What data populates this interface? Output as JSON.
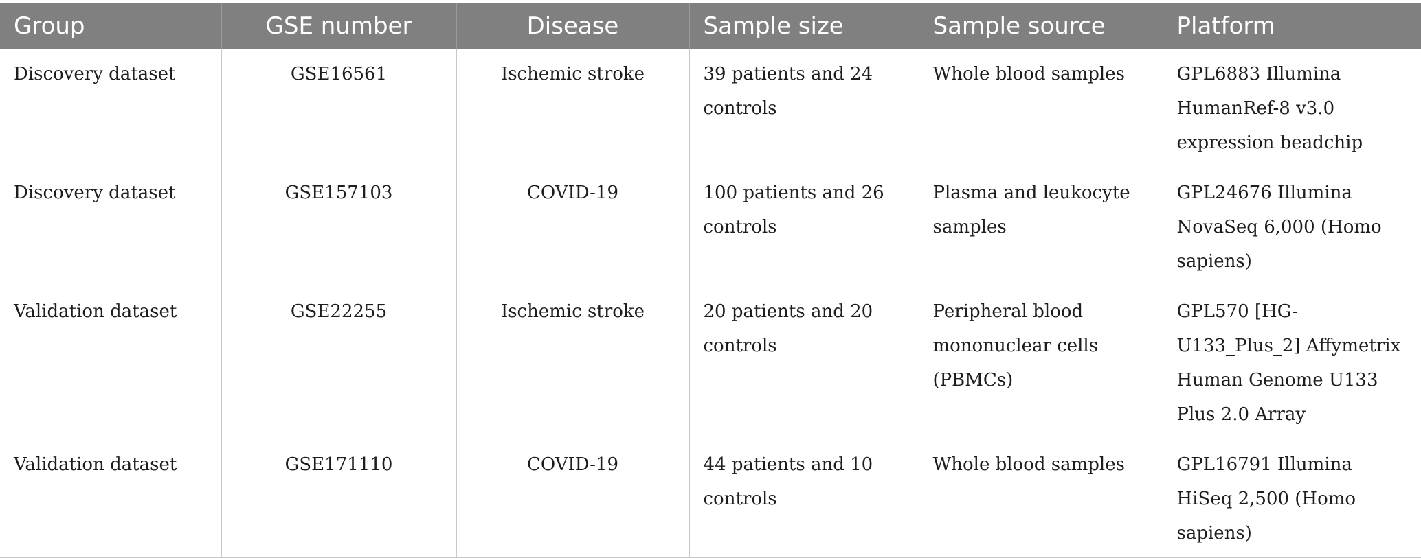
{
  "table": {
    "headers": [
      "Group",
      "GSE number",
      "Disease",
      "Sample size",
      "Sample source",
      "Platform"
    ],
    "rows": [
      [
        "Discovery dataset",
        "GSE16561",
        "Ischemic stroke",
        "39 patients and 24 controls",
        "Whole blood samples",
        "GPL6883 Illumina HumanRef-8 v3.0 expression beadchip"
      ],
      [
        "Discovery dataset",
        "GSE157103",
        "COVID-19",
        "100 patients and 26 controls",
        "Plasma and leukocyte samples",
        "GPL24676 Illumina NovaSeq 6,000 (Homo sapiens)"
      ],
      [
        "Validation dataset",
        "GSE22255",
        "Ischemic stroke",
        "20 patients and 20 controls",
        "Peripheral blood mononuclear cells (PBMCs)",
        "GPL570 [HG-U133_Plus_2] Affymetrix Human Genome U133 Plus 2.0 Array"
      ],
      [
        "Validation dataset",
        "GSE171110",
        "COVID-19",
        "44 patients and 10 controls",
        "Whole blood samples",
        "GPL16791 Illumina HiSeq 2,500 (Homo sapiens)"
      ]
    ]
  },
  "colors": {
    "header_bg": "#7f807f",
    "header_text": "#ffffff",
    "grid_line": "#c8c8c8"
  }
}
